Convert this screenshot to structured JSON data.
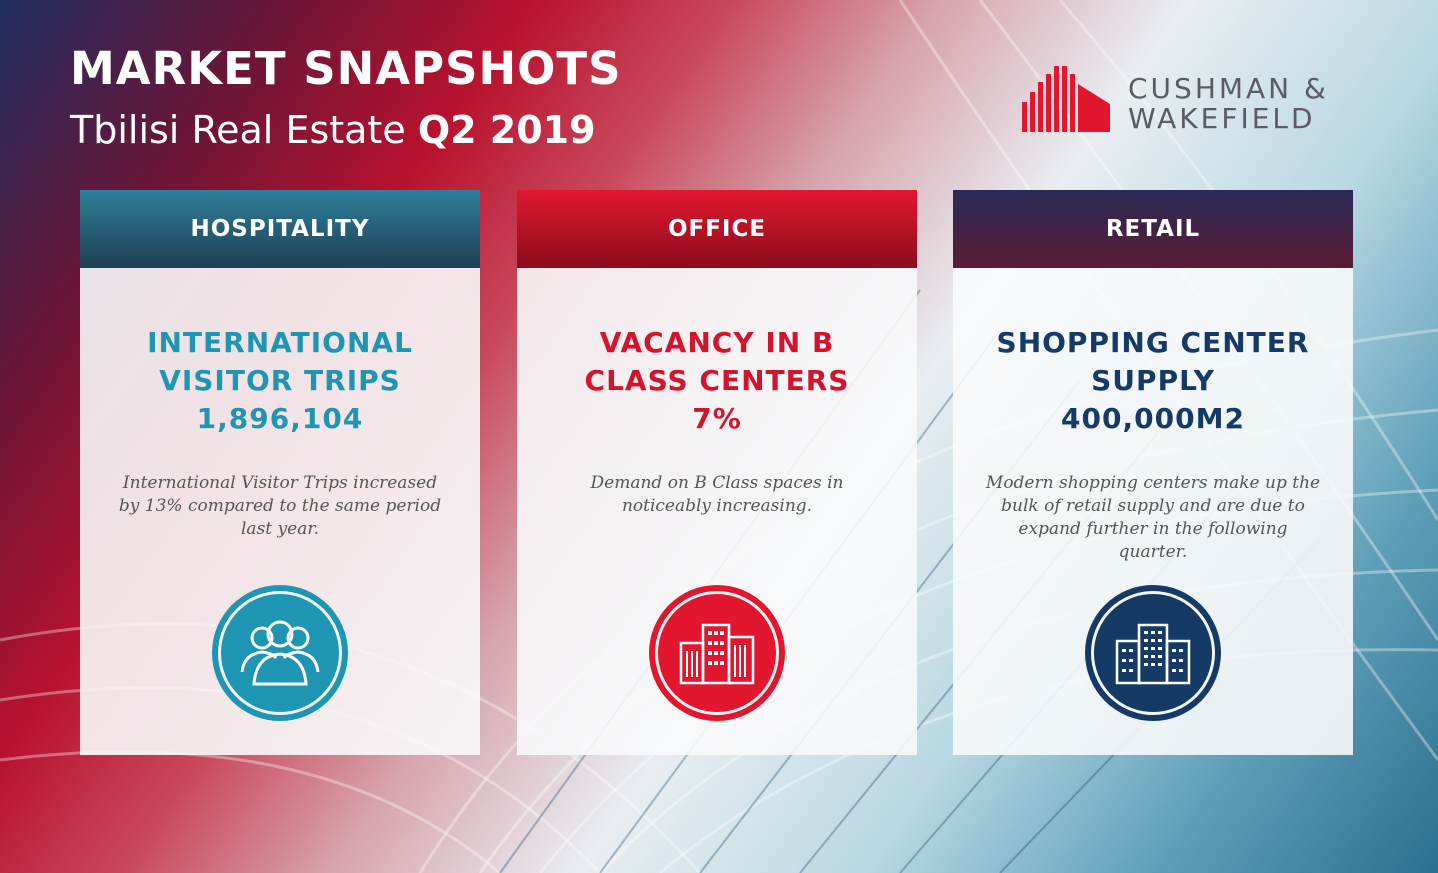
{
  "header": {
    "title": "MARKET SNAPSHOTS",
    "subtitle_regular": "Tbilisi Real Estate",
    "subtitle_bold": "Q2 2019"
  },
  "logo": {
    "line1": "CUSHMAN &",
    "line2": "WAKEFIELD",
    "color": "#e2172f"
  },
  "cards": [
    {
      "category": "HOSPITALITY",
      "metric_lines": [
        "INTERNATIONAL",
        "VISITOR TRIPS",
        "1,896,104"
      ],
      "description": "International Visitor Trips increased by 13% compared to the same period last year.",
      "icon": "people-group-icon",
      "accent": "#1e95b3"
    },
    {
      "category": "OFFICE",
      "metric_lines": [
        "VACANCY IN B",
        "CLASS CENTERS",
        "7%"
      ],
      "description": "Demand on B Class spaces in noticeably increasing.",
      "icon": "office-buildings-icon",
      "accent": "#e2172f"
    },
    {
      "category": "RETAIL",
      "metric_lines": [
        "SHOPPING CENTER",
        "SUPPLY",
        "400,000M2"
      ],
      "description": "Modern shopping centers make up the bulk of retail supply and are due to expand further in the following quarter.",
      "icon": "shopping-center-building-icon",
      "accent": "#153a66"
    }
  ]
}
